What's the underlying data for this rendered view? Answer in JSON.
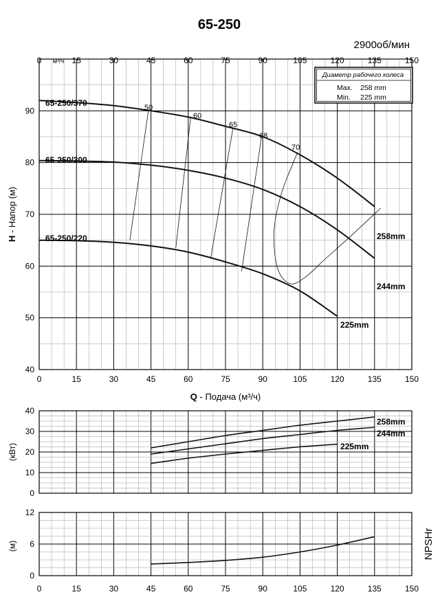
{
  "title": "65-250",
  "speed_label": "2900об/мин",
  "impeller_box": {
    "title": "Диаметр рабочего колеса",
    "max_label": "Max.",
    "max_value": "258 mm",
    "min_label": "Min.",
    "min_value": "225 mm"
  },
  "chart_data": [
    {
      "type": "line",
      "name": "head",
      "top_axis_unit": "м³/ч",
      "xlabel_prefix": "Q",
      "xlabel": " - Подача (м³/ч)",
      "ylabel_prefix": "H",
      "ylabel": " - Напор (м)",
      "xlim": [
        0,
        150
      ],
      "ylim": [
        40,
        100
      ],
      "grid": true,
      "x_ticks": [
        "0",
        "15",
        "30",
        "45",
        "60",
        "75",
        "90",
        "105",
        "120",
        "135",
        "150"
      ],
      "y_ticks": [
        "40",
        "50",
        "60",
        "70",
        "80",
        "90"
      ],
      "series": [
        {
          "name": "258mm",
          "model": "65-250/370",
          "x": [
            0,
            15,
            30,
            45,
            60,
            75,
            90,
            105,
            120,
            135
          ],
          "y": [
            92,
            91.6,
            91,
            90,
            88.8,
            87,
            85,
            81.5,
            77,
            71.5
          ]
        },
        {
          "name": "244mm",
          "model": "65-250/300",
          "x": [
            0,
            15,
            30,
            45,
            60,
            75,
            90,
            105,
            120,
            135
          ],
          "y": [
            80.4,
            80.3,
            80.1,
            79.5,
            78.5,
            77,
            74.8,
            71.5,
            67,
            61.5
          ]
        },
        {
          "name": "225mm",
          "model": "65-250/220",
          "x": [
            0,
            15,
            30,
            45,
            60,
            75,
            90,
            105,
            120
          ],
          "y": [
            65,
            64.9,
            64.6,
            63.9,
            62.7,
            60.8,
            58.5,
            55.2,
            50.3
          ]
        }
      ],
      "efficiency_curves": [
        {
          "label": "50",
          "x": [
            44,
            36.5
          ],
          "y": [
            90.2,
            65
          ]
        },
        {
          "label": "60",
          "x": [
            61,
            55
          ],
          "y": [
            88.8,
            63.5
          ]
        },
        {
          "label": "65",
          "x": [
            78,
            69
          ],
          "y": [
            86.6,
            61.4
          ]
        },
        {
          "label": "68",
          "x": [
            89.5,
            81.5
          ],
          "y": [
            85,
            59
          ]
        },
        {
          "label": "70",
          "x": [
            104,
            97.5,
            94.5,
            96,
            101,
            107,
            115,
            125,
            137.5
          ],
          "y": [
            82,
            74,
            66.5,
            59.5,
            56.6,
            57.8,
            61.3,
            65.6,
            71.2
          ]
        }
      ]
    },
    {
      "type": "line",
      "name": "power",
      "ylabel": "(кВт)",
      "xlim": [
        0,
        150
      ],
      "ylim": [
        0,
        40
      ],
      "grid": true,
      "x_ticks": [],
      "y_ticks": [
        "0",
        "10",
        "20",
        "30",
        "40"
      ],
      "series": [
        {
          "name": "258mm",
          "x": [
            45,
            60,
            75,
            90,
            105,
            120,
            135
          ],
          "y": [
            22,
            25,
            28,
            30.5,
            33,
            35,
            37
          ]
        },
        {
          "name": "244mm",
          "x": [
            45,
            60,
            75,
            90,
            105,
            120,
            135
          ],
          "y": [
            19,
            21.5,
            24,
            26.5,
            28.5,
            30.5,
            32
          ]
        },
        {
          "name": "225mm",
          "x": [
            45,
            60,
            75,
            90,
            105,
            120
          ],
          "y": [
            14.5,
            17,
            19,
            20.8,
            22.5,
            23.8
          ]
        }
      ]
    },
    {
      "type": "line",
      "name": "npsh",
      "ylabel": "(м)",
      "side_label": "NPSHr",
      "xlim": [
        0,
        150
      ],
      "ylim": [
        0,
        12
      ],
      "grid": true,
      "x_ticks": [
        "0",
        "15",
        "30",
        "45",
        "60",
        "75",
        "90",
        "105",
        "120",
        "135",
        "150"
      ],
      "y_ticks": [
        "0",
        "6",
        "12"
      ],
      "series": [
        {
          "name": "",
          "x": [
            45,
            60,
            75,
            90,
            105,
            120,
            135
          ],
          "y": [
            2.2,
            2.5,
            2.9,
            3.5,
            4.5,
            5.8,
            7.4
          ]
        }
      ]
    }
  ],
  "colors": {
    "line": "#111111",
    "grid": "#000000",
    "minor_grid": "#9a9a9a"
  }
}
